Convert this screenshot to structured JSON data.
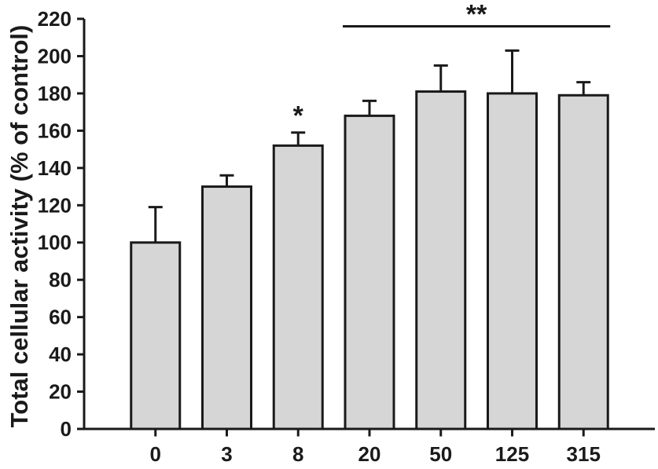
{
  "figure": {
    "background_color": "#ffffff"
  },
  "chart_data": {
    "type": "bar",
    "title": "",
    "xlabel": "",
    "ylabel": "Total cellular activity (% of control)",
    "categories": [
      "0",
      "3",
      "8",
      "20",
      "50",
      "125",
      "315"
    ],
    "values": [
      100,
      130,
      152,
      168,
      181,
      180,
      179
    ],
    "errors_plus": [
      19,
      6,
      7,
      8,
      14,
      23,
      7
    ],
    "ylim": [
      0,
      220
    ],
    "ytick_step": 20,
    "ytick_labels": [
      "0",
      "20",
      "40",
      "60",
      "80",
      "100",
      "120",
      "140",
      "160",
      "180",
      "200",
      "220"
    ],
    "grid": false,
    "legend": "none",
    "bar_fill_color": "#d6d6d6",
    "bar_edge_color": "#1a1a1a",
    "axis_color": "#1a1a1a",
    "annotations": [
      {
        "type": "star",
        "text": "*",
        "category_index": 2
      },
      {
        "type": "bracket",
        "text": "**",
        "from_index": 3,
        "to_index": 6,
        "y_value": 216
      }
    ]
  }
}
